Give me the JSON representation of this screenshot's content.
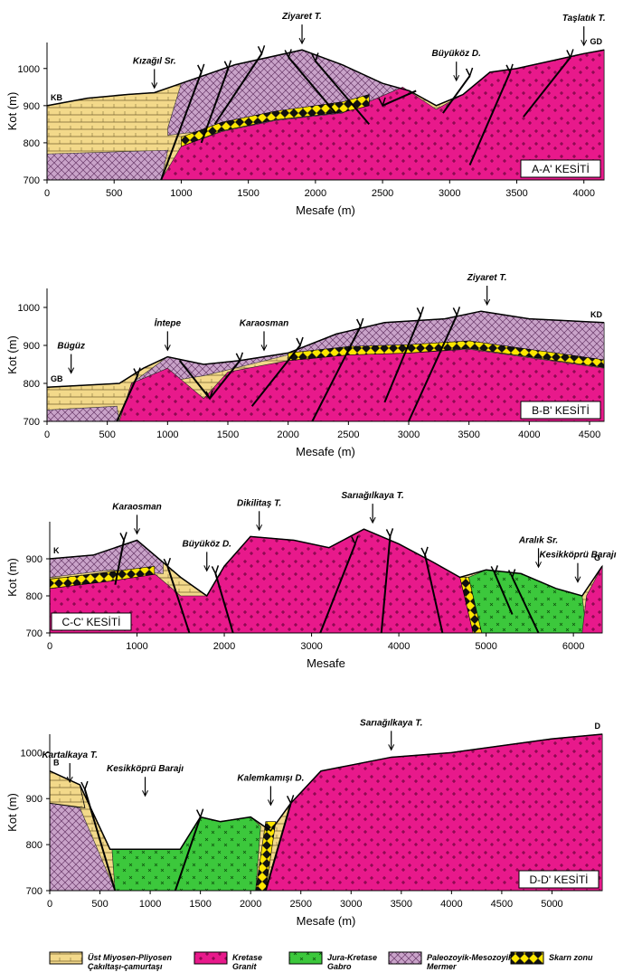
{
  "sections": [
    {
      "title": "A-A' KESİTİ",
      "x_label": "Mesafe (m)",
      "y_label": "Kot (m)",
      "end_labels": [
        "KB",
        "GD"
      ],
      "annotations": [
        "Kızağıl Sr.",
        "Ziyaret T.",
        "Büyüköz D.",
        "Taşlatık T."
      ],
      "xlim": [
        0,
        4150
      ],
      "ylim": [
        700,
        1070
      ],
      "xticks": [
        0,
        500,
        1000,
        1500,
        2000,
        2500,
        3000,
        3500,
        4000
      ],
      "yticks": [
        700,
        800,
        900,
        1000
      ]
    },
    {
      "title": "B-B' KESİTİ",
      "x_label": "Mesafe (m)",
      "y_label": "Kot (m)",
      "end_labels": [
        "GB",
        "KD"
      ],
      "annotations": [
        "Bügüz",
        "İntepe",
        "Karaosman",
        "Ziyaret T."
      ],
      "xlim": [
        0,
        4620
      ],
      "ylim": [
        700,
        1050
      ],
      "xticks": [
        0,
        500,
        1000,
        1500,
        2000,
        2500,
        3000,
        3500,
        4000,
        4500
      ],
      "yticks": [
        700,
        800,
        900,
        1000
      ]
    },
    {
      "title": "C-C' KESİTİ",
      "x_label": "Mesafe",
      "y_label": "Kot (m)",
      "end_labels": [
        "K",
        "G"
      ],
      "annotations": [
        "Karaosman",
        "Büyüköz D.",
        "Dikilitaş T.",
        "Sarıağılkaya T.",
        "Aralık Sr.",
        "Kesikköprü Barajı"
      ],
      "xlim": [
        0,
        6330
      ],
      "ylim": [
        700,
        1000
      ],
      "xticks": [
        0,
        1000,
        2000,
        3000,
        4000,
        5000,
        6000
      ],
      "yticks": [
        700,
        800,
        900
      ]
    },
    {
      "title": "D-D' KESİTİ",
      "x_label": "Mesafe (m)",
      "y_label": "Kot (m)",
      "end_labels": [
        "B",
        "D"
      ],
      "annotations": [
        "Kartalkaya T.",
        "Kesikköprü Barajı",
        "Kalemkamışı D.",
        "Sarıağılkaya T."
      ],
      "xlim": [
        0,
        5500
      ],
      "ylim": [
        700,
        1040
      ],
      "xticks": [
        0,
        500,
        1000,
        1500,
        2000,
        2500,
        3000,
        3500,
        4000,
        4500,
        5000
      ],
      "yticks": [
        700,
        800,
        900,
        1000
      ]
    }
  ],
  "legend": [
    {
      "lines": [
        "Üst Miyosen-Pliyosen",
        "Çakıltaşı-çamurtaşı"
      ]
    },
    {
      "lines": [
        "Kretase",
        "Granit"
      ]
    },
    {
      "lines": [
        "Jura-Kretase",
        "Gabro"
      ]
    },
    {
      "lines": [
        "Paleozoyik-Mesozoyik",
        "Mermer"
      ]
    },
    {
      "lines": [
        "Skarn zonu"
      ]
    }
  ]
}
